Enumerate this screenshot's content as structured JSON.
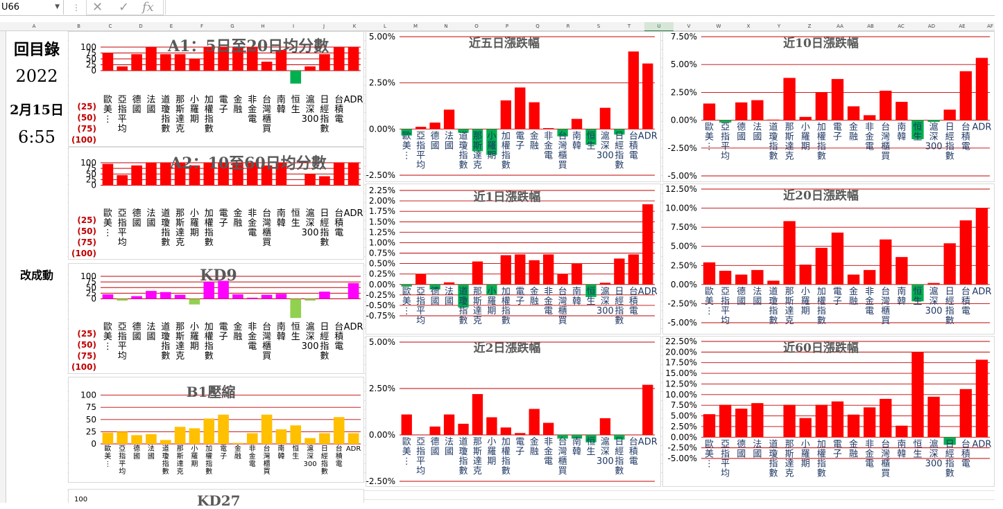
{
  "formula_bar": {
    "cell_ref": "U66",
    "cancel_icon": "✕",
    "enter_icon": "✓",
    "fx_icon": "fx"
  },
  "column_headers": [
    "A",
    "B",
    "C",
    "D",
    "E",
    "F",
    "G",
    "H",
    "I",
    "J",
    "K",
    "L",
    "M",
    "N",
    "O",
    "P",
    "Q",
    "R",
    "S",
    "T",
    "U",
    "V",
    "W",
    "X",
    "Y",
    "Z",
    "AA",
    "AB",
    "AC",
    "AD",
    "AE",
    "AF"
  ],
  "selected_column": "U",
  "sidebar": {
    "toc": "回目錄",
    "year": "2022",
    "date": "2月15日",
    "time": "6:55",
    "partial": "改成動"
  },
  "cut_chart": {
    "title": "KD27",
    "tick": "100"
  },
  "chart_data": [
    {
      "id": "a1",
      "type": "bar",
      "title": "A1：5日至20日均分數",
      "ylim": [
        -100,
        100
      ],
      "yticks": [
        "100",
        "75",
        "50",
        "25",
        "0",
        "(25)",
        "(50)",
        "(75)",
        "(100)"
      ],
      "categories": [
        "歐美⋮",
        "亞指平均",
        "德國",
        "法國",
        "道瓊指數",
        "那斯達克",
        "小羅期",
        "加權指數",
        "電子",
        "金融",
        "非金電",
        "台灣櫃買",
        "南韓",
        "恒生",
        "滬深300",
        "日經指數",
        "台積電",
        "ADR"
      ],
      "values": [
        75,
        18,
        70,
        100,
        70,
        70,
        50,
        100,
        100,
        100,
        100,
        38,
        88,
        -55,
        18,
        70,
        100,
        100
      ]
    },
    {
      "id": "a2",
      "type": "bar",
      "title": "A2：10至60日均分數",
      "ylim": [
        -100,
        100
      ],
      "yticks": [
        "100",
        "75",
        "50",
        "25",
        "0",
        "(25)",
        "(50)",
        "(75)",
        "(100)"
      ],
      "categories": [
        "歐美⋮",
        "亞指平均",
        "德國",
        "法國",
        "道瓊指數",
        "那斯達克",
        "小羅期",
        "加權指數",
        "電子",
        "金融",
        "非金電",
        "台灣櫃買",
        "南韓",
        "恒生",
        "滬深300",
        "日經指數",
        "台積電",
        "ADR"
      ],
      "values": [
        95,
        45,
        88,
        100,
        100,
        100,
        88,
        100,
        100,
        100,
        100,
        88,
        100,
        0,
        50,
        40,
        100,
        100
      ]
    },
    {
      "id": "kd9",
      "type": "bar",
      "title": "KD9",
      "ylim": [
        -100,
        100
      ],
      "yticks": [
        "100",
        "75",
        "50",
        "25",
        "0",
        "(25)",
        "(50)",
        "(75)",
        "(100)"
      ],
      "categories": [
        "歐美⋮",
        "亞指平均",
        "德國",
        "法國",
        "道瓊指數",
        "那斯達克",
        "小羅期",
        "加權指數",
        "電子",
        "金融",
        "非金電",
        "台灣櫃買",
        "南韓",
        "恒生",
        "滬深300",
        "日經指數",
        "台積電",
        "ADR"
      ],
      "values": [
        20,
        -8,
        12,
        35,
        30,
        18,
        -25,
        75,
        80,
        20,
        5,
        18,
        22,
        -85,
        -8,
        32,
        0,
        70
      ],
      "color_pos": "#ff00ff",
      "color_neg": "#92d050"
    },
    {
      "id": "b1",
      "type": "bar",
      "title": "B1壓縮",
      "ylim": [
        0,
        125
      ],
      "yticks": [
        "100",
        "75",
        "50",
        "25",
        "0"
      ],
      "categories": [
        "歐美⋮",
        "亞指平均",
        "德國",
        "法國",
        "道瓊指數",
        "那斯達克",
        "小羅期",
        "加權指數",
        "電子",
        "金融",
        "非金電",
        "台灣櫃買",
        "南韓",
        "恒生",
        "滬深300",
        "日經指數",
        "台積電",
        "ADR"
      ],
      "values": [
        23,
        25,
        18,
        20,
        8,
        35,
        32,
        52,
        60,
        2,
        22,
        60,
        30,
        38,
        12,
        22,
        55,
        22
      ],
      "color_pos": "#ffc000"
    },
    {
      "id": "d5",
      "type": "bar",
      "title": "近五日漲跌幅",
      "ylim": [
        -2.5,
        5.0
      ],
      "yticks": [
        "5.00%",
        "2.50%",
        "0.00%",
        "-2.50%"
      ],
      "categories": [
        "歐美⋮",
        "亞指平均",
        "德國",
        "法國",
        "道瓊指數",
        "那斯達克",
        "小羅期",
        "加權指數",
        "電子",
        "金融",
        "非金電",
        "台灣櫃買",
        "南韓",
        "恒生",
        "滬深300",
        "日經指數",
        "台積電",
        "ADR"
      ],
      "values": [
        -0.35,
        0.12,
        0.35,
        1.05,
        -0.2,
        -1.2,
        -1.4,
        1.55,
        2.25,
        1.45,
        0.05,
        -0.4,
        0.55,
        -0.85,
        1.15,
        -0.3,
        4.2,
        3.55
      ]
    },
    {
      "id": "d1",
      "type": "bar",
      "title": "近1日漲跌幅",
      "ylim": [
        -0.75,
        2.25
      ],
      "yticks": [
        "2.25%",
        "2.00%",
        "1.75%",
        "1.50%",
        "1.25%",
        "1.00%",
        "0.75%",
        "0.50%",
        "0.25%",
        "0.00%",
        "-0.25%",
        "-0.50%",
        "-0.75%"
      ],
      "categories": [
        "歐美⋮",
        "亞指平均",
        "德國",
        "法國",
        "道瓊指數",
        "那斯達克",
        "小羅期",
        "加權指數",
        "電子",
        "金融",
        "非金電",
        "台灣櫃買",
        "南韓",
        "恒生",
        "滬深300",
        "日經指數",
        "台積電",
        "ADR"
      ],
      "values": [
        -0.05,
        0.25,
        -0.12,
        0.05,
        -0.55,
        0.55,
        -0.25,
        0.7,
        0.72,
        0.58,
        0.72,
        0.25,
        0.5,
        -0.3,
        0.04,
        0.62,
        0.72,
        1.92
      ]
    },
    {
      "id": "d2",
      "type": "bar",
      "title": "近2日漲跌幅",
      "ylim": [
        -2.5,
        5.0
      ],
      "yticks": [
        "5.00%",
        "2.50%",
        "0.00%",
        "-2.50%"
      ],
      "categories": [
        "歐美⋮",
        "亞指平均",
        "德國",
        "法國",
        "道瓊指數",
        "那斯達克",
        "小羅期",
        "加權指數",
        "電子",
        "金融",
        "非金電",
        "台灣櫃買",
        "南韓",
        "恒生",
        "滬深300",
        "日經指數",
        "台積電",
        "ADR"
      ],
      "values": [
        1.1,
        0,
        0.45,
        1.1,
        0.6,
        2.2,
        0.95,
        0.4,
        0.1,
        1.4,
        0.65,
        -0.2,
        -0.2,
        -0.4,
        0.9,
        -0.25,
        0,
        2.7
      ]
    },
    {
      "id": "d10",
      "type": "bar",
      "title": "近10日漲跌幅",
      "ylim": [
        -5.0,
        7.5
      ],
      "yticks": [
        "7.50%",
        "5.00%",
        "2.50%",
        "0.00%",
        "-2.50%",
        "-5.00%"
      ],
      "categories": [
        "歐美⋮",
        "亞指平均",
        "德國",
        "法國",
        "道瓊指數",
        "那斯達克",
        "小羅期",
        "加權指數",
        "電子",
        "金融",
        "非金電",
        "台灣櫃買",
        "南韓",
        "恒生",
        "滬深300",
        "日經指數",
        "台積電",
        "ADR"
      ],
      "values": [
        1.5,
        -0.2,
        1.6,
        1.8,
        0.05,
        3.8,
        0.3,
        2.5,
        3.7,
        1.25,
        0.45,
        2.65,
        1.65,
        -1.7,
        -0.15,
        0.95,
        4.4,
        5.6
      ]
    },
    {
      "id": "d20",
      "type": "bar",
      "title": "近20日漲跌幅",
      "ylim": [
        -5.0,
        12.5
      ],
      "yticks": [
        "12.50%",
        "10.00%",
        "7.50%",
        "5.00%",
        "2.50%",
        "0.00%",
        "-2.50%",
        "-5.00%"
      ],
      "categories": [
        "歐美⋮",
        "亞指平均",
        "德國",
        "法國",
        "道瓊指數",
        "那斯達克",
        "小羅期",
        "加權指數",
        "電子",
        "金融",
        "非金電",
        "台灣櫃買",
        "南韓",
        "恒生",
        "滬深300",
        "日經指數",
        "台積電",
        "ADR"
      ],
      "values": [
        2.9,
        1.8,
        1.3,
        1.9,
        0.5,
        8.3,
        2.6,
        4.8,
        6.8,
        1.3,
        1.9,
        5.9,
        3.6,
        -2.2,
        0.2,
        5.4,
        8.4,
        10.0
      ]
    },
    {
      "id": "d60",
      "type": "bar",
      "title": "近60日漲跌幅",
      "ylim": [
        -5.0,
        22.5
      ],
      "yticks": [
        "22.50%",
        "20.00%",
        "17.50%",
        "15.00%",
        "12.50%",
        "10.00%",
        "7.50%",
        "5.00%",
        "2.50%",
        "0.00%",
        "-2.50%",
        "-5.00%"
      ],
      "categories": [
        "歐美⋮",
        "亞指平均",
        "德國",
        "法國",
        "道瓊指數",
        "那斯達克",
        "小羅期",
        "加權指數",
        "電子",
        "金融",
        "非金電",
        "台灣櫃買",
        "南韓",
        "恒生",
        "滬深300",
        "日經指數",
        "台積電",
        "ADR"
      ],
      "values": [
        5.4,
        7.6,
        6.7,
        8.0,
        0,
        7.6,
        4.5,
        7.6,
        8.4,
        5.3,
        7.0,
        9.0,
        2.7,
        19.9,
        9.5,
        -1.8,
        11.3,
        18.2
      ]
    }
  ]
}
